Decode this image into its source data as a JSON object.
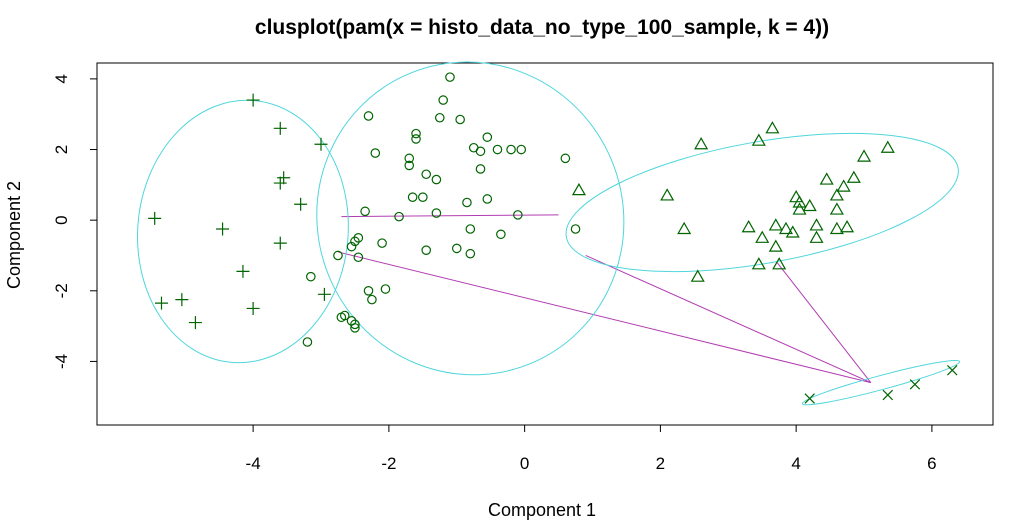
{
  "chart_data": {
    "type": "scatter",
    "title": "clusplot(pam(x = histo_data_no_type_100_sample, k = 4))",
    "xlabel": "Component 1",
    "ylabel": "Component 2",
    "xlim": [
      -6.3,
      6.9
    ],
    "ylim": [
      -5.8,
      4.45
    ],
    "x_ticks": [
      -4,
      -2,
      0,
      2,
      4,
      6
    ],
    "y_ticks": [
      -4,
      -2,
      0,
      2,
      4
    ],
    "x_tick_labels": [
      "-4",
      "-2",
      "0",
      "2",
      "4",
      "6"
    ],
    "y_tick_labels": [
      "-4",
      "-2",
      "0",
      "2",
      "4"
    ],
    "grid": false,
    "legend": "none",
    "colors": {
      "points": "#006400",
      "ellipse": "#4fd6dc",
      "lines": "#b23db2",
      "axes": "#000000"
    },
    "clusters": [
      {
        "marker": "plus",
        "points": [
          [
            -4.0,
            3.4
          ],
          [
            -3.6,
            2.6
          ],
          [
            -3.0,
            2.15
          ],
          [
            -3.55,
            1.2
          ],
          [
            -3.6,
            1.05
          ],
          [
            -3.3,
            0.45
          ],
          [
            -5.45,
            0.05
          ],
          [
            -4.45,
            -0.25
          ],
          [
            -3.6,
            -0.65
          ],
          [
            -4.15,
            -1.45
          ],
          [
            -2.95,
            -2.1
          ],
          [
            -5.05,
            -2.25
          ],
          [
            -5.35,
            -2.35
          ],
          [
            -4.0,
            -2.5
          ],
          [
            -4.85,
            -2.9
          ]
        ],
        "ellipse": {
          "center": [
            -4.15,
            -0.32
          ],
          "rx": 1.55,
          "ry": 3.72,
          "angle": -5
        }
      },
      {
        "marker": "circle",
        "points": [
          [
            -1.1,
            4.05
          ],
          [
            -1.2,
            3.4
          ],
          [
            -2.3,
            2.95
          ],
          [
            -1.25,
            2.9
          ],
          [
            -0.95,
            2.85
          ],
          [
            -1.6,
            2.45
          ],
          [
            -0.55,
            2.35
          ],
          [
            -1.6,
            2.3
          ],
          [
            -2.2,
            1.9
          ],
          [
            -0.75,
            2.05
          ],
          [
            -0.65,
            1.95
          ],
          [
            -0.4,
            2.0
          ],
          [
            -0.2,
            2.0
          ],
          [
            -0.05,
            2.0
          ],
          [
            0.6,
            1.75
          ],
          [
            -1.7,
            1.75
          ],
          [
            -1.7,
            1.55
          ],
          [
            -0.65,
            1.45
          ],
          [
            -1.45,
            1.3
          ],
          [
            -1.3,
            1.15
          ],
          [
            -1.65,
            0.65
          ],
          [
            -1.5,
            0.65
          ],
          [
            -1.3,
            0.2
          ],
          [
            -0.85,
            0.5
          ],
          [
            -0.55,
            0.6
          ],
          [
            -0.8,
            -0.25
          ],
          [
            -0.35,
            -0.4
          ],
          [
            -1.85,
            0.1
          ],
          [
            -2.35,
            0.25
          ],
          [
            -0.8,
            -0.95
          ],
          [
            -1.0,
            -0.8
          ],
          [
            -1.45,
            -0.85
          ],
          [
            -2.1,
            -0.65
          ],
          [
            -2.45,
            -0.5
          ],
          [
            -2.5,
            -0.6
          ],
          [
            -2.55,
            -0.75
          ],
          [
            -2.45,
            -1.05
          ],
          [
            -2.75,
            -1.0
          ],
          [
            -3.15,
            -1.6
          ],
          [
            -2.05,
            -1.95
          ],
          [
            -2.3,
            -2.0
          ],
          [
            -2.25,
            -2.25
          ],
          [
            -2.65,
            -2.7
          ],
          [
            -2.7,
            -2.75
          ],
          [
            -2.55,
            -2.85
          ],
          [
            -2.5,
            -2.95
          ],
          [
            -2.5,
            -3.05
          ],
          [
            -3.2,
            -3.45
          ],
          [
            0.75,
            -0.25
          ],
          [
            -0.1,
            0.15
          ]
        ],
        "ellipse": {
          "center": [
            -0.8,
            0.05
          ],
          "rx": 2.25,
          "ry": 4.45,
          "angle": 25
        }
      },
      {
        "marker": "triangle",
        "points": [
          [
            3.65,
            2.6
          ],
          [
            5.35,
            2.05
          ],
          [
            2.6,
            2.15
          ],
          [
            3.45,
            2.25
          ],
          [
            5.0,
            1.8
          ],
          [
            4.85,
            1.2
          ],
          [
            4.45,
            1.15
          ],
          [
            4.7,
            0.95
          ],
          [
            4.6,
            0.7
          ],
          [
            4.0,
            0.65
          ],
          [
            4.05,
            0.5
          ],
          [
            4.2,
            0.4
          ],
          [
            4.05,
            0.3
          ],
          [
            4.6,
            0.3
          ],
          [
            2.1,
            0.7
          ],
          [
            0.8,
            0.85
          ],
          [
            2.35,
            -0.25
          ],
          [
            3.3,
            -0.2
          ],
          [
            3.7,
            -0.15
          ],
          [
            3.85,
            -0.25
          ],
          [
            4.3,
            -0.15
          ],
          [
            4.6,
            -0.25
          ],
          [
            4.75,
            -0.2
          ],
          [
            3.95,
            -0.35
          ],
          [
            3.5,
            -0.5
          ],
          [
            4.3,
            -0.5
          ],
          [
            3.7,
            -0.75
          ],
          [
            3.45,
            -1.25
          ],
          [
            3.75,
            -1.25
          ],
          [
            2.55,
            -1.6
          ]
        ],
        "ellipse": {
          "center": [
            3.5,
            0.5
          ],
          "rx": 2.93,
          "ry": 1.72,
          "angle": 10
        }
      },
      {
        "marker": "x",
        "points": [
          [
            4.2,
            -5.05
          ],
          [
            5.35,
            -4.95
          ],
          [
            5.75,
            -4.65
          ],
          [
            6.3,
            -4.25
          ]
        ],
        "ellipse": {
          "center": [
            5.25,
            -4.6
          ],
          "rx": 1.2,
          "ry": 0.2,
          "angle": 15
        }
      }
    ],
    "connecting_lines": [
      [
        [
          -2.7,
          0.1
        ],
        [
          0.5,
          0.15
        ]
      ],
      [
        [
          -2.75,
          -0.9
        ],
        [
          5.1,
          -4.6
        ]
      ],
      [
        [
          0.9,
          -1.0
        ],
        [
          5.1,
          -4.6
        ]
      ],
      [
        [
          3.72,
          -1.2
        ],
        [
          5.1,
          -4.6
        ]
      ]
    ]
  }
}
